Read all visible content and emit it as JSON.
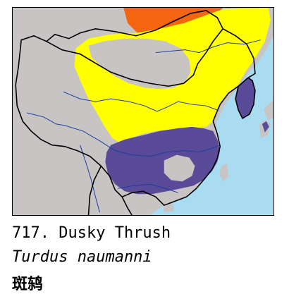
{
  "species": {
    "number_title": "717. Dusky Thrush",
    "scientific_name": "Turdus naumanni",
    "chinese_name": "斑鸫"
  },
  "map": {
    "colors": {
      "sea": "#a9dcf0",
      "land": "#c8c4c4",
      "breeding": "#f3650f",
      "migration": "#ffff00",
      "winter": "#5a4b99",
      "border": "#000000",
      "river": "#1a3f9c"
    }
  }
}
